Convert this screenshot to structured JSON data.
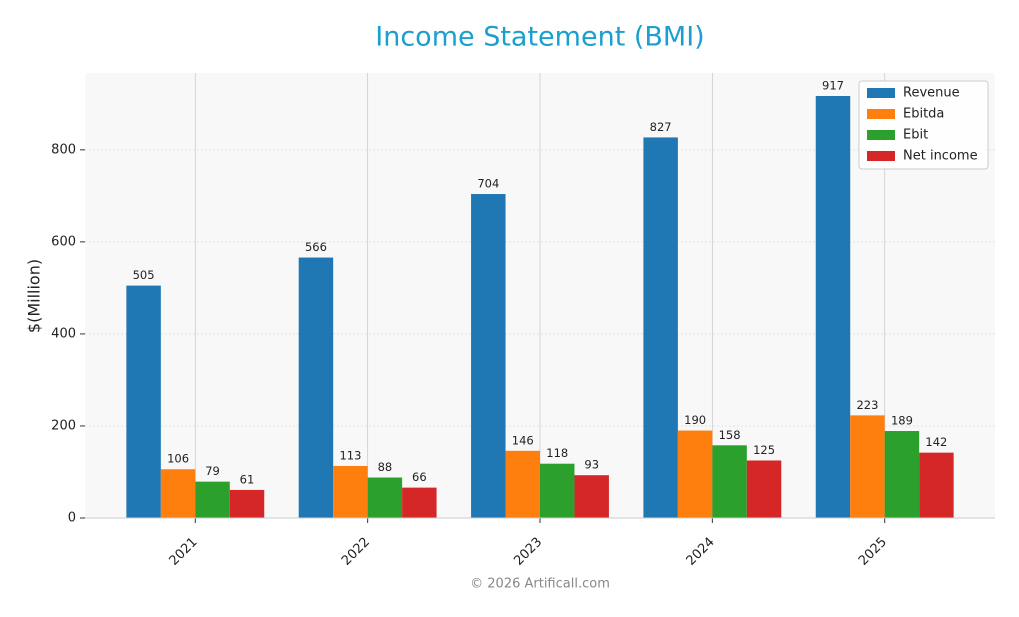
{
  "chart_data": {
    "type": "bar",
    "title": "Income Statement (BMI)",
    "y_label": "$(Million)",
    "categories": [
      "2021",
      "2022",
      "2023",
      "2024",
      "2025"
    ],
    "series": [
      {
        "name": "Revenue",
        "color": "#1f77b4",
        "values": [
          505,
          566,
          704,
          827,
          917
        ]
      },
      {
        "name": "Ebitda",
        "color": "#ff7f0e",
        "values": [
          106,
          113,
          146,
          190,
          223
        ]
      },
      {
        "name": "Ebit",
        "color": "#2ca02c",
        "values": [
          79,
          88,
          118,
          158,
          189
        ]
      },
      {
        "name": "Net income",
        "color": "#d62728",
        "values": [
          61,
          66,
          93,
          125,
          142
        ]
      }
    ],
    "ylim": [
      0,
      967
    ],
    "yticks": [
      0,
      200,
      400,
      600,
      800
    ],
    "grid": true,
    "legend": "upper right",
    "footer": "© 2026 Artificall.com"
  }
}
